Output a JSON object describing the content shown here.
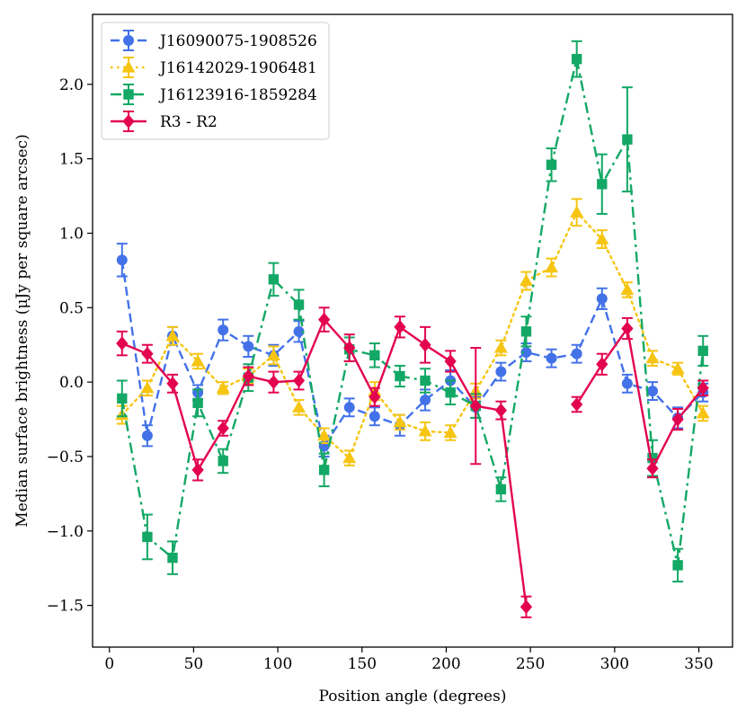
{
  "chart_data": {
    "type": "line",
    "title": "",
    "xlabel": "Position angle (degrees)",
    "ylabel": "Median surface brightness (μJy per square arcsec)",
    "xlim": [
      -10,
      370
    ],
    "ylim": [
      -1.78,
      2.47
    ],
    "grid": false,
    "legend_position": "top-left",
    "x_ticks": [
      0,
      50,
      100,
      150,
      200,
      250,
      300,
      350
    ],
    "x_tick_labels": [
      "0",
      "50",
      "100",
      "150",
      "200",
      "250",
      "300",
      "350"
    ],
    "y_ticks": [
      -1.5,
      -1.0,
      -0.5,
      0.0,
      0.5,
      1.0,
      1.5,
      2.0
    ],
    "y_tick_labels": [
      "−1.5",
      "−1.0",
      "−0.5",
      "0.0",
      "0.5",
      "1.0",
      "1.5",
      "2.0"
    ],
    "series": [
      {
        "name": "J16090075-1908526",
        "color": "#4372e8",
        "linestyle": "dashed",
        "marker": "circle",
        "points": [
          [
            7.5,
            0.82,
            0.11
          ],
          [
            22.5,
            -0.36,
            0.07
          ],
          [
            37.5,
            0.31,
            0.06
          ],
          [
            52.5,
            -0.07,
            0.05
          ],
          [
            67.5,
            0.35,
            0.07
          ],
          [
            82.5,
            0.24,
            0.07
          ],
          [
            97.5,
            0.18,
            0.07
          ],
          [
            112.5,
            0.34,
            0.07
          ],
          [
            127.5,
            -0.43,
            0.07
          ],
          [
            142.5,
            -0.17,
            0.06
          ],
          [
            157.5,
            -0.23,
            0.06
          ],
          [
            172.5,
            -0.29,
            0.07
          ],
          [
            187.5,
            -0.12,
            0.07
          ],
          [
            202.5,
            0.01,
            0.07
          ],
          [
            217.5,
            -0.17,
            0.07
          ],
          [
            232.5,
            0.07,
            0.06
          ],
          [
            247.5,
            0.2,
            0.06
          ],
          [
            262.5,
            0.16,
            0.06
          ],
          [
            277.5,
            0.19,
            0.06
          ],
          [
            292.5,
            0.56,
            0.07
          ],
          [
            307.5,
            -0.01,
            0.06
          ],
          [
            322.5,
            -0.06,
            0.06
          ],
          [
            337.5,
            -0.24,
            0.07
          ],
          [
            352.5,
            -0.07,
            0.06
          ]
        ]
      },
      {
        "name": "J16142029-1906481",
        "color": "#f6c513",
        "linestyle": "dotted",
        "marker": "triangle",
        "points": [
          [
            7.5,
            -0.22,
            0.06
          ],
          [
            22.5,
            -0.04,
            0.05
          ],
          [
            37.5,
            0.31,
            0.06
          ],
          [
            52.5,
            0.14,
            0.05
          ],
          [
            67.5,
            -0.04,
            0.04
          ],
          [
            82.5,
            0.04,
            0.05
          ],
          [
            97.5,
            0.18,
            0.06
          ],
          [
            112.5,
            -0.17,
            0.05
          ],
          [
            127.5,
            -0.36,
            0.05
          ],
          [
            142.5,
            -0.51,
            0.05
          ],
          [
            157.5,
            -0.06,
            0.06
          ],
          [
            172.5,
            -0.27,
            0.05
          ],
          [
            187.5,
            -0.33,
            0.06
          ],
          [
            202.5,
            -0.34,
            0.05
          ],
          [
            217.5,
            -0.06,
            0.05
          ],
          [
            232.5,
            0.23,
            0.05
          ],
          [
            247.5,
            0.68,
            0.06
          ],
          [
            262.5,
            0.77,
            0.06
          ],
          [
            277.5,
            1.14,
            0.09
          ],
          [
            292.5,
            0.96,
            0.06
          ],
          [
            307.5,
            0.62,
            0.05
          ],
          [
            322.5,
            0.16,
            0.05
          ],
          [
            337.5,
            0.09,
            0.04
          ],
          [
            352.5,
            -0.21,
            0.05
          ]
        ]
      },
      {
        "name": "J16123916-1859284",
        "color": "#13a865",
        "linestyle": "dashdot",
        "marker": "square",
        "points": [
          [
            7.5,
            -0.11,
            0.12
          ],
          [
            22.5,
            -1.04,
            0.15
          ],
          [
            37.5,
            -1.18,
            0.11
          ],
          [
            52.5,
            -0.14,
            0.09
          ],
          [
            67.5,
            -0.53,
            0.08
          ],
          [
            82.5,
            0.03,
            0.09
          ],
          [
            97.5,
            0.69,
            0.11
          ],
          [
            112.5,
            0.52,
            0.1
          ],
          [
            127.5,
            -0.59,
            0.11
          ],
          [
            142.5,
            0.22,
            0.08
          ],
          [
            157.5,
            0.18,
            0.08
          ],
          [
            172.5,
            0.04,
            0.07
          ],
          [
            187.5,
            0.01,
            0.08
          ],
          [
            202.5,
            -0.07,
            0.08
          ],
          [
            217.5,
            -0.16,
            0.08
          ],
          [
            232.5,
            -0.72,
            0.08
          ],
          [
            247.5,
            0.34,
            0.1
          ],
          [
            262.5,
            1.46,
            0.11
          ],
          [
            277.5,
            2.17,
            0.12
          ],
          [
            292.5,
            1.33,
            0.2
          ],
          [
            307.5,
            1.63,
            0.35
          ],
          [
            322.5,
            -0.51,
            0.12
          ],
          [
            337.5,
            -1.23,
            0.11
          ],
          [
            352.5,
            0.21,
            0.1
          ]
        ]
      },
      {
        "name": "R3 - R2",
        "color": "#e3044f",
        "linestyle": "solid",
        "marker": "diamond",
        "segments": [
          [
            [
              7.5,
              0.26,
              0.08
            ],
            [
              22.5,
              0.19,
              0.06
            ],
            [
              37.5,
              -0.01,
              0.06
            ],
            [
              52.5,
              -0.59,
              0.07
            ],
            [
              67.5,
              -0.31,
              0.05
            ],
            [
              82.5,
              0.04,
              0.06
            ],
            [
              97.5,
              0.0,
              0.07
            ],
            [
              112.5,
              0.01,
              0.06
            ],
            [
              127.5,
              0.42,
              0.08
            ],
            [
              142.5,
              0.23,
              0.09
            ],
            [
              157.5,
              -0.1,
              0.06
            ],
            [
              172.5,
              0.37,
              0.07
            ],
            [
              187.5,
              0.25,
              0.12
            ],
            [
              202.5,
              0.14,
              0.07
            ],
            [
              217.5,
              -0.16,
              0.39
            ],
            [
              232.5,
              -0.19,
              0.06
            ],
            [
              247.5,
              -1.51,
              0.07
            ]
          ],
          [
            [
              277.5,
              -0.15,
              0.05
            ],
            [
              292.5,
              0.12,
              0.07
            ],
            [
              307.5,
              0.36,
              0.07
            ],
            [
              322.5,
              -0.58,
              0.06
            ],
            [
              337.5,
              -0.25,
              0.07
            ],
            [
              352.5,
              -0.04,
              0.05
            ]
          ]
        ]
      }
    ]
  }
}
